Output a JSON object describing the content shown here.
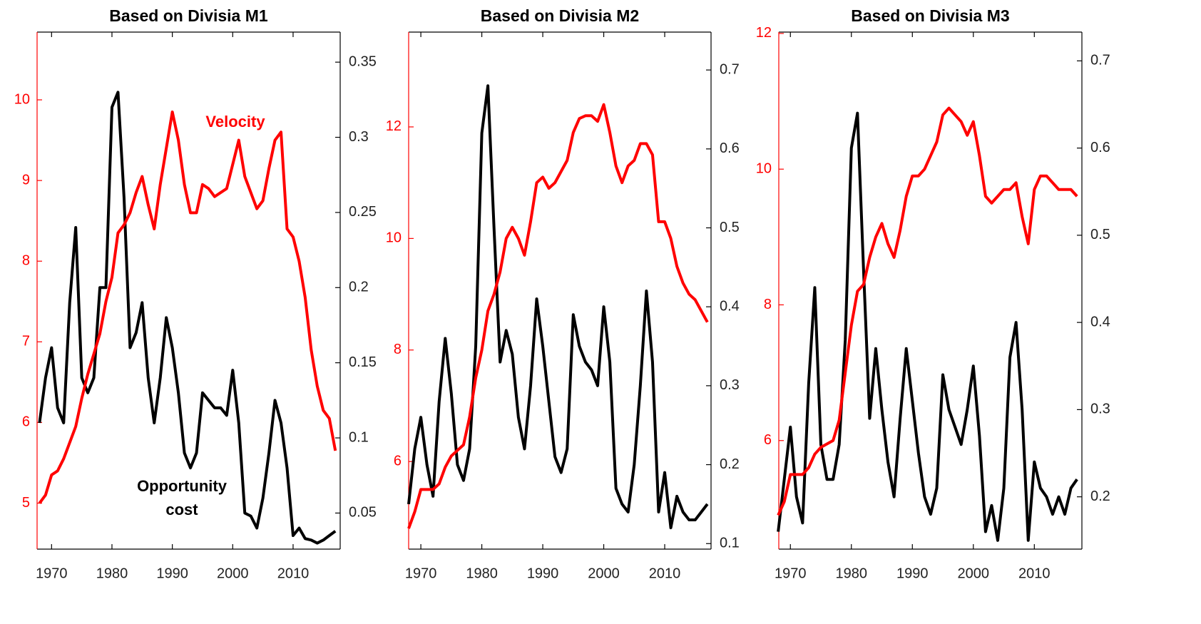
{
  "chart_data": [
    {
      "type": "line",
      "title": "Based on Divisia M1",
      "x": [
        1968,
        1969,
        1970,
        1971,
        1972,
        1973,
        1974,
        1975,
        1976,
        1977,
        1978,
        1979,
        1980,
        1981,
        1982,
        1983,
        1984,
        1985,
        1986,
        1987,
        1988,
        1989,
        1990,
        1991,
        1992,
        1993,
        1994,
        1995,
        1996,
        1997,
        1998,
        1999,
        2000,
        2001,
        2002,
        2003,
        2004,
        2005,
        2006,
        2007,
        2008,
        2009,
        2010,
        2011,
        2012,
        2013,
        2014,
        2015,
        2016,
        2017
      ],
      "xlim": [
        1967.6,
        2017.8
      ],
      "xticks": [
        1970,
        1980,
        1990,
        2000,
        2010
      ],
      "ylim": [
        4.43,
        10.84
      ],
      "yticks": [
        5,
        6,
        7,
        8,
        9,
        10
      ],
      "y2lim": [
        0.026,
        0.37
      ],
      "y2ticks": [
        0.05,
        0.1,
        0.15,
        0.2,
        0.25,
        0.3,
        0.35
      ],
      "series": [
        {
          "color": "#ff0000",
          "values": [
            5.0,
            5.1,
            5.35,
            5.4,
            5.55,
            5.75,
            5.95,
            6.3,
            6.6,
            6.85,
            7.1,
            7.5,
            7.8,
            8.35,
            8.45,
            8.6,
            8.85,
            9.05,
            8.7,
            8.4,
            8.95,
            9.4,
            9.85,
            9.5,
            8.95,
            8.6,
            8.6,
            8.95,
            8.9,
            8.8,
            8.85,
            8.9,
            9.2,
            9.5,
            9.05,
            8.85,
            8.65,
            8.75,
            9.15,
            9.5,
            9.6,
            8.4,
            8.3,
            8.0,
            7.55,
            6.9,
            6.45,
            6.15,
            6.05,
            5.65
          ]
        },
        {
          "color": "#000000",
          "axis": "y2",
          "values": [
            0.11,
            0.14,
            0.16,
            0.12,
            0.11,
            0.19,
            0.24,
            0.14,
            0.13,
            0.14,
            0.2,
            0.2,
            0.32,
            0.33,
            0.26,
            0.16,
            0.17,
            0.19,
            0.14,
            0.11,
            0.14,
            0.18,
            0.16,
            0.13,
            0.09,
            0.08,
            0.09,
            0.13,
            0.125,
            0.12,
            0.12,
            0.115,
            0.145,
            0.11,
            0.05,
            0.048,
            0.04,
            0.06,
            0.09,
            0.125,
            0.11,
            0.08,
            0.035,
            0.04,
            0.033,
            0.032,
            0.03,
            0.032,
            0.035,
            0.038
          ]
        }
      ],
      "annotations": [
        {
          "text": "Velocity",
          "color": "#ff0000"
        },
        {
          "text": "Opportunity",
          "color": "#000000"
        },
        {
          "text": "cost",
          "color": "#000000"
        }
      ]
    },
    {
      "type": "line",
      "title": "Based on Divisia M2",
      "x": [
        1968,
        1969,
        1970,
        1971,
        1972,
        1973,
        1974,
        1975,
        1976,
        1977,
        1978,
        1979,
        1980,
        1981,
        1982,
        1983,
        1984,
        1985,
        1986,
        1987,
        1988,
        1989,
        1990,
        1991,
        1992,
        1993,
        1994,
        1995,
        1996,
        1997,
        1998,
        1999,
        2000,
        2001,
        2002,
        2003,
        2004,
        2005,
        2006,
        2007,
        2008,
        2009,
        2010,
        2011,
        2012,
        2013,
        2014,
        2015,
        2016,
        2017
      ],
      "xlim": [
        1968.0,
        2017.6
      ],
      "xticks": [
        1970,
        1980,
        1990,
        2000,
        2010
      ],
      "ylim": [
        4.43,
        13.7
      ],
      "yticks": [
        6,
        8,
        10,
        12
      ],
      "y2lim": [
        0.093,
        0.748
      ],
      "y2ticks": [
        0.1,
        0.2,
        0.3,
        0.4,
        0.5,
        0.6,
        0.7
      ],
      "series": [
        {
          "color": "#ff0000",
          "values": [
            4.8,
            5.1,
            5.5,
            5.5,
            5.5,
            5.6,
            5.9,
            6.1,
            6.2,
            6.3,
            6.8,
            7.5,
            8.0,
            8.7,
            9.0,
            9.4,
            10.0,
            10.2,
            10.0,
            9.7,
            10.3,
            11.0,
            11.1,
            10.9,
            11.0,
            11.2,
            11.4,
            11.9,
            12.15,
            12.2,
            12.2,
            12.1,
            12.4,
            11.9,
            11.3,
            11.0,
            11.3,
            11.4,
            11.7,
            11.7,
            11.5,
            10.3,
            10.3,
            10.0,
            9.5,
            9.2,
            9.0,
            8.9,
            8.7,
            8.5
          ]
        },
        {
          "color": "#000000",
          "axis": "y2",
          "values": [
            0.15,
            0.22,
            0.26,
            0.2,
            0.16,
            0.28,
            0.36,
            0.29,
            0.2,
            0.18,
            0.22,
            0.35,
            0.62,
            0.68,
            0.5,
            0.33,
            0.37,
            0.34,
            0.26,
            0.22,
            0.3,
            0.41,
            0.35,
            0.28,
            0.21,
            0.19,
            0.22,
            0.39,
            0.35,
            0.33,
            0.32,
            0.3,
            0.4,
            0.33,
            0.17,
            0.15,
            0.14,
            0.2,
            0.3,
            0.42,
            0.33,
            0.14,
            0.19,
            0.12,
            0.16,
            0.14,
            0.13,
            0.13,
            0.14,
            0.15
          ]
        }
      ]
    },
    {
      "type": "line",
      "title": "Based on Divisia M3",
      "x": [
        1968,
        1969,
        1970,
        1971,
        1972,
        1973,
        1974,
        1975,
        1976,
        1977,
        1978,
        1979,
        1980,
        1981,
        1982,
        1983,
        1984,
        1985,
        1986,
        1987,
        1988,
        1989,
        1990,
        1991,
        1992,
        1993,
        1994,
        1995,
        1996,
        1997,
        1998,
        1999,
        2000,
        2001,
        2002,
        2003,
        2004,
        2005,
        2006,
        2007,
        2008,
        2009,
        2010,
        2011,
        2012,
        2013,
        2014,
        2015,
        2016,
        2017
      ],
      "xlim": [
        1968.1,
        2017.8
      ],
      "xticks": [
        1970,
        1980,
        1990,
        2000,
        2010
      ],
      "ylim": [
        4.4,
        12.02
      ],
      "yticks": [
        6,
        8,
        10,
        12
      ],
      "y2lim": [
        0.14,
        0.733
      ],
      "y2ticks": [
        0.2,
        0.3,
        0.4,
        0.5,
        0.6,
        0.7
      ],
      "series": [
        {
          "color": "#ff0000",
          "values": [
            4.9,
            5.1,
            5.5,
            5.5,
            5.5,
            5.6,
            5.8,
            5.9,
            5.95,
            6.0,
            6.3,
            7.0,
            7.7,
            8.2,
            8.3,
            8.7,
            9.0,
            9.2,
            8.9,
            8.7,
            9.1,
            9.6,
            9.9,
            9.9,
            10.0,
            10.2,
            10.4,
            10.8,
            10.9,
            10.8,
            10.7,
            10.5,
            10.7,
            10.2,
            9.6,
            9.5,
            9.6,
            9.7,
            9.7,
            9.8,
            9.3,
            8.9,
            9.7,
            9.9,
            9.9,
            9.8,
            9.7,
            9.7,
            9.7,
            9.6
          ]
        },
        {
          "color": "#000000",
          "axis": "y2",
          "values": [
            0.16,
            0.22,
            0.28,
            0.2,
            0.17,
            0.33,
            0.44,
            0.26,
            0.22,
            0.22,
            0.26,
            0.38,
            0.6,
            0.64,
            0.46,
            0.29,
            0.37,
            0.3,
            0.24,
            0.2,
            0.29,
            0.37,
            0.31,
            0.25,
            0.2,
            0.18,
            0.21,
            0.34,
            0.3,
            0.28,
            0.26,
            0.3,
            0.35,
            0.27,
            0.16,
            0.19,
            0.15,
            0.21,
            0.36,
            0.4,
            0.3,
            0.15,
            0.24,
            0.21,
            0.2,
            0.18,
            0.2,
            0.18,
            0.21,
            0.22
          ]
        }
      ]
    }
  ]
}
